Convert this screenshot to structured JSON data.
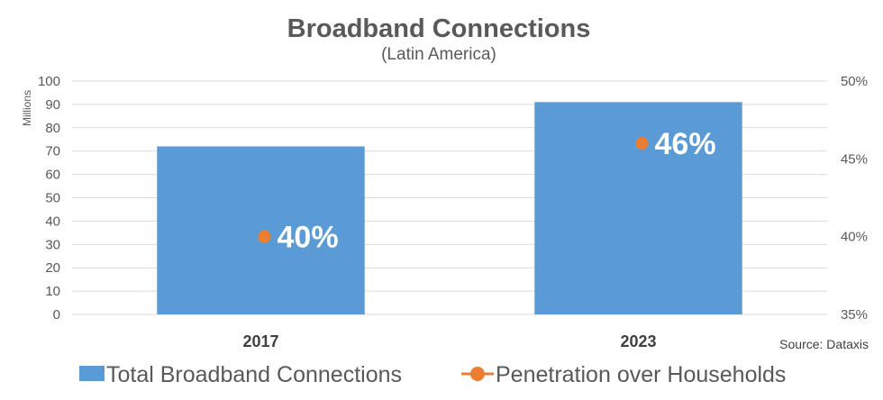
{
  "chart_data": {
    "type": "bar",
    "title": "Broadband Connections",
    "subtitle": "(Latin America)",
    "categories": [
      "2017",
      "2023"
    ],
    "series": [
      {
        "name": "Total Broadband Connections",
        "kind": "bar",
        "axis": "left",
        "values": [
          72,
          91
        ]
      },
      {
        "name": "Penetration over Households",
        "kind": "line",
        "axis": "right",
        "values": [
          40,
          46
        ]
      }
    ],
    "data_labels": [
      "40%",
      "46%"
    ],
    "ylabel": "Millions",
    "ylim": [
      0,
      100
    ],
    "y_ticks": [
      "0",
      "10",
      "20",
      "30",
      "40",
      "50",
      "60",
      "70",
      "80",
      "90",
      "100"
    ],
    "y2lim": [
      35,
      50
    ],
    "y2_ticks": [
      "35%",
      "40%",
      "45%",
      "50%"
    ],
    "grid": true,
    "legend_position": "bottom",
    "source": "Source: Dataxis",
    "colors": {
      "bar": "#5b9bd5",
      "point": "#ed7d31",
      "grid": "#d9d9d9",
      "text": "#595959"
    }
  }
}
